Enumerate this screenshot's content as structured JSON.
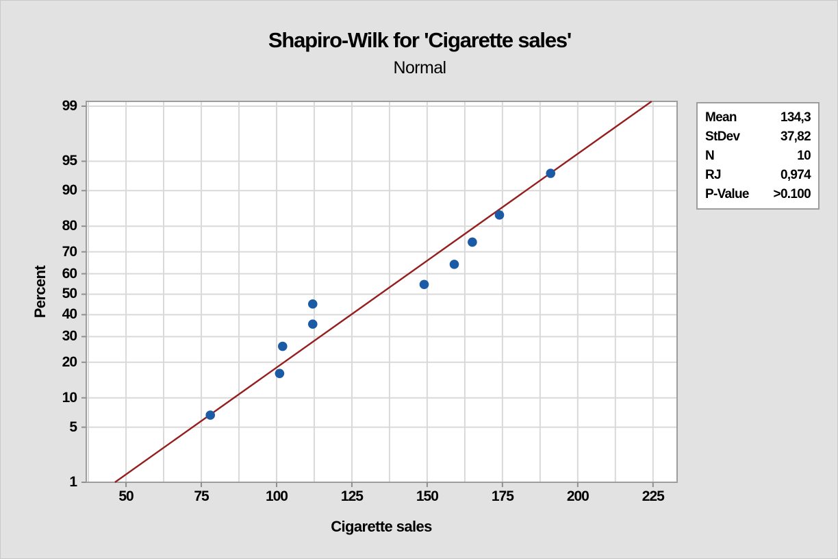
{
  "figure": {
    "title": "Shapiro-Wilk for 'Cigarette sales'",
    "subtitle": "Normal"
  },
  "stats_box": {
    "rows": [
      {
        "label": "Mean",
        "value": "134,3"
      },
      {
        "label": "StDev",
        "value": "37,82"
      },
      {
        "label": "N",
        "value": "10"
      },
      {
        "label": "RJ",
        "value": "0,974"
      },
      {
        "label": "P-Value",
        "value": ">0.100"
      }
    ]
  },
  "colors": {
    "background": "#e2e2e2",
    "plot_background": "#ffffff",
    "gridline": "#d9d9d9",
    "plot_border": "#9d9d9d",
    "tick_mark": "#8f8f8f",
    "point": "#1b5ba6",
    "fit_line": "#951e1e",
    "text": "#000000"
  },
  "chart_data": {
    "type": "scatter",
    "subtype": "normal-probability-plot",
    "title": "Shapiro-Wilk for 'Cigarette sales'",
    "subtitle": "Normal",
    "xlabel": "Cigarette sales",
    "ylabel": "Percent",
    "y_scale": "probit",
    "grid": true,
    "x_ticks": [
      50,
      75,
      100,
      125,
      150,
      175,
      200,
      225
    ],
    "x_grid": {
      "start": 37.5,
      "end": 225,
      "step": 12.5
    },
    "x_range": [
      36.8,
      233.0
    ],
    "z_range": [
      -2.3263,
      2.3856
    ],
    "y_ticks": [
      {
        "percent": 99,
        "z": 2.3263
      },
      {
        "percent": 95,
        "z": 1.6449
      },
      {
        "percent": 90,
        "z": 1.2816
      },
      {
        "percent": 80,
        "z": 0.8416
      },
      {
        "percent": 70,
        "z": 0.5244
      },
      {
        "percent": 60,
        "z": 0.2533
      },
      {
        "percent": 50,
        "z": 0.0
      },
      {
        "percent": 40,
        "z": -0.2533
      },
      {
        "percent": 30,
        "z": -0.5244
      },
      {
        "percent": 20,
        "z": -0.8416
      },
      {
        "percent": 10,
        "z": -1.2816
      },
      {
        "percent": 5,
        "z": -1.6449
      },
      {
        "percent": 1,
        "z": -2.3263
      }
    ],
    "sample_values": [
      78,
      101,
      102,
      112,
      112,
      149,
      159,
      165,
      174,
      191
    ],
    "points": [
      {
        "x": 78,
        "percent": 6.7,
        "z": -1.4957
      },
      {
        "x": 101,
        "percent": 16.3,
        "z": -0.9803
      },
      {
        "x": 102,
        "percent": 26.0,
        "z": -0.6444
      },
      {
        "x": 112,
        "percent": 35.6,
        "z": -0.3697
      },
      {
        "x": 112,
        "percent": 45.2,
        "z": -0.1208
      },
      {
        "x": 149,
        "percent": 54.8,
        "z": 0.1208
      },
      {
        "x": 159,
        "percent": 64.4,
        "z": 0.3697
      },
      {
        "x": 165,
        "percent": 74.0,
        "z": 0.6444
      },
      {
        "x": 174,
        "percent": 83.7,
        "z": 0.9803
      },
      {
        "x": 191,
        "percent": 93.3,
        "z": 1.4957
      }
    ],
    "fit_line": {
      "mean": 134.3,
      "stdev": 37.82
    }
  }
}
